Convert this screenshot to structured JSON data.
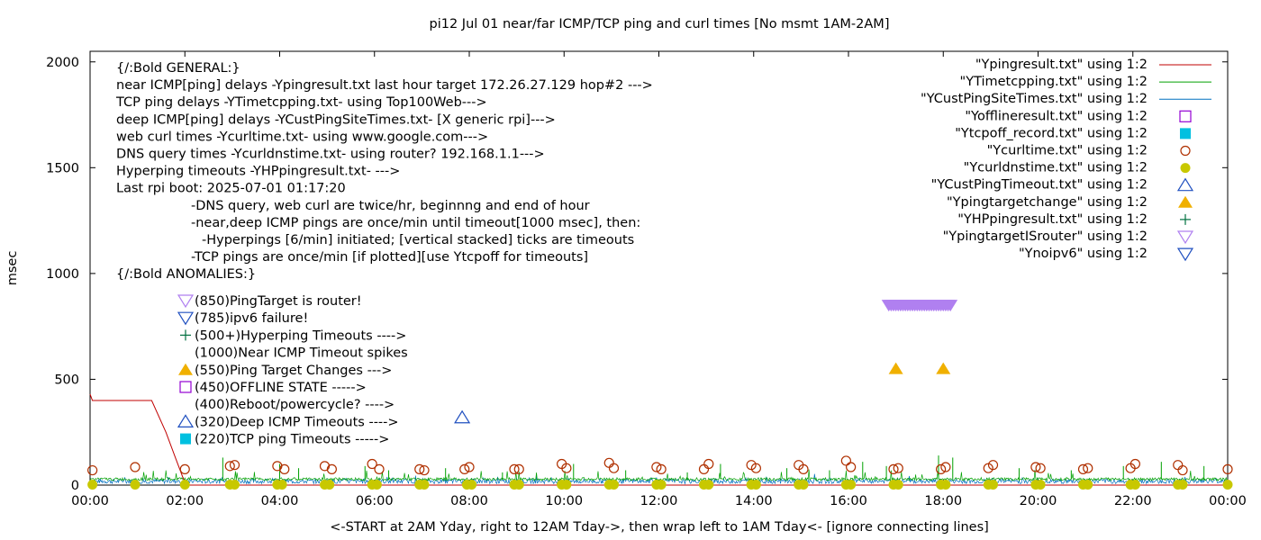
{
  "chart_data": {
    "type": "line",
    "title": "pi12 Jul 01  near/far ICMP/TCP ping and curl times [No msmt 1AM-2AM]",
    "xlabel": "<-START at 2AM Yday, right to 12AM Tday->, then wrap left to 1AM Tday<- [ignore connecting lines]",
    "ylabel": "msec",
    "x_unit": "hours",
    "xlim": [
      0,
      24
    ],
    "ylim": [
      0,
      2050
    ],
    "x_ticks": [
      {
        "v": 0,
        "label": "00:00"
      },
      {
        "v": 2,
        "label": "02:00"
      },
      {
        "v": 4,
        "label": "04:00"
      },
      {
        "v": 6,
        "label": "06:00"
      },
      {
        "v": 8,
        "label": "08:00"
      },
      {
        "v": 10,
        "label": "10:00"
      },
      {
        "v": 12,
        "label": "12:00"
      },
      {
        "v": 14,
        "label": "14:00"
      },
      {
        "v": 16,
        "label": "16:00"
      },
      {
        "v": 18,
        "label": "18:00"
      },
      {
        "v": 20,
        "label": "20:00"
      },
      {
        "v": 22,
        "label": "22:00"
      },
      {
        "v": 24,
        "label": "00:00"
      }
    ],
    "y_ticks": [
      {
        "v": 0,
        "label": "0"
      },
      {
        "v": 500,
        "label": "500"
      },
      {
        "v": 1000,
        "label": "1000"
      },
      {
        "v": 1500,
        "label": "1500"
      },
      {
        "v": 2000,
        "label": "2000"
      }
    ],
    "grid": false,
    "legend_position": "top-right",
    "annotations": [
      "{/:Bold GENERAL:}",
      "near ICMP[ping] delays -Ypingresult.txt last hour target 172.26.27.129 hop#2 --->",
      "TCP ping delays -YTimetcpping.txt- using Top100Web--->",
      "deep ICMP[ping] delays -YCustPingSiteTimes.txt- [X generic rpi]--->",
      "web curl times -Ycurltime.txt- using www.google.com--->",
      "DNS query times -Ycurldnstime.txt- using router? 192.168.1.1--->",
      "Hyperping timeouts -YHPpingresult.txt- --->",
      "Last rpi boot: 2025-07-01 01:17:20",
      "-DNS query, web curl are twice/hr, beginnng and end of hour",
      "-near,deep ICMP pings are once/min until timeout[1000 msec], then:",
      "-Hyperpings [6/min] initiated; [vertical stacked] ticks are timeouts",
      "-TCP pings are once/min [if plotted][use Ytcpoff for timeouts]",
      "{/:Bold ANOMALIES:}"
    ],
    "anomaly_keys": [
      {
        "symbol": "tri-down-violet",
        "label": "(850)PingTarget is router!"
      },
      {
        "symbol": "tri-down-blue",
        "label": "(785)ipv6 failure!"
      },
      {
        "symbol": "plus-green",
        "label": "(500+)Hyperping Timeouts ---->"
      },
      {
        "symbol": "none",
        "label": "(1000)Near ICMP Timeout spikes"
      },
      {
        "symbol": "tri-up-filled-orange",
        "label": "(550)Ping Target Changes --->"
      },
      {
        "symbol": "square-open-violet",
        "label": "(450)OFFLINE STATE ----->"
      },
      {
        "symbol": "none",
        "label": "(400)Reboot/powercycle? ---->"
      },
      {
        "symbol": "tri-up-blue",
        "label": "(320)Deep ICMP Timeouts ---->"
      },
      {
        "symbol": "square-filled-cyan",
        "label": "(220)TCP ping Timeouts ----->"
      }
    ],
    "series": [
      {
        "name": "\"Ypingresult.txt\" using 1:2",
        "style": "line",
        "color": "#c00000",
        "x": [
          0,
          0.05,
          0.1,
          1.0,
          1.3,
          1.6,
          1.8,
          2.0,
          2.05,
          24
        ],
        "y": [
          430,
          400,
          400,
          400,
          400,
          250,
          130,
          10,
          0,
          0
        ]
      },
      {
        "name": "\"YTimetcpping.txt\" using 1:2",
        "style": "line",
        "color": "#00a000",
        "x": [
          0,
          24
        ],
        "y": [
          28,
          28
        ]
      },
      {
        "name": "\"YCustPingSiteTimes.txt\" using 1:2",
        "style": "line",
        "color": "#0070c0",
        "x": [
          0,
          24
        ],
        "y": [
          18,
          18
        ]
      },
      {
        "name": "\"Yofflineresult.txt\" using 1:2",
        "style": "square-open",
        "color": "#9400d3",
        "x": [],
        "y": []
      },
      {
        "name": "\"Ytcpoff_record.txt\" using 1:2",
        "style": "square-filled",
        "color": "#00c0e0",
        "x": [],
        "y": []
      },
      {
        "name": "\"Ycurltime.txt\" using 1:2",
        "style": "circle-open",
        "color": "#b03000",
        "x": [
          0.05,
          0.95,
          2.0,
          2.95,
          3.05,
          3.95,
          4.1,
          4.95,
          5.1,
          5.95,
          6.1,
          6.95,
          7.05,
          7.9,
          8.0,
          8.95,
          9.05,
          9.95,
          10.05,
          10.95,
          11.05,
          11.95,
          12.05,
          12.95,
          13.05,
          13.95,
          14.05,
          14.95,
          15.05,
          15.95,
          16.05,
          16.95,
          17.05,
          17.95,
          18.05,
          18.95,
          19.05,
          19.95,
          20.05,
          20.95,
          21.05,
          21.95,
          22.05,
          22.95,
          23.05,
          24.0
        ],
        "y": [
          70,
          85,
          75,
          90,
          95,
          90,
          75,
          90,
          75,
          100,
          75,
          75,
          70,
          75,
          85,
          75,
          75,
          100,
          80,
          105,
          80,
          85,
          75,
          75,
          100,
          95,
          80,
          95,
          75,
          115,
          85,
          75,
          80,
          75,
          85,
          80,
          95,
          85,
          80,
          75,
          80,
          80,
          100,
          95,
          70,
          75
        ]
      },
      {
        "name": "\"Ycurldnstime.txt\" using 1:2",
        "style": "circle-filled",
        "color": "#c8c800",
        "x": [
          0.05,
          0.95,
          2.0,
          2.95,
          3.05,
          3.95,
          4.05,
          4.95,
          5.05,
          5.95,
          6.05,
          6.95,
          7.05,
          7.95,
          8.05,
          8.95,
          9.05,
          9.95,
          10.05,
          10.95,
          11.05,
          11.95,
          12.05,
          12.95,
          13.05,
          13.95,
          14.05,
          14.95,
          15.05,
          15.95,
          16.05,
          16.95,
          17.05,
          17.95,
          18.05,
          18.95,
          19.05,
          19.95,
          20.05,
          20.95,
          21.05,
          21.95,
          22.05,
          22.95,
          23.05,
          24.0
        ],
        "y": [
          2,
          2,
          2,
          2,
          2,
          2,
          2,
          2,
          2,
          2,
          2,
          2,
          2,
          2,
          2,
          2,
          2,
          2,
          2,
          2,
          2,
          2,
          2,
          2,
          2,
          2,
          2,
          2,
          2,
          2,
          2,
          2,
          2,
          2,
          2,
          2,
          2,
          2,
          2,
          2,
          2,
          2,
          2,
          2,
          2,
          2
        ]
      },
      {
        "name": "\"YCustPingTimeout.txt\" using 1:2",
        "style": "tri-up-open",
        "color": "#2050c0",
        "x": [
          7.85
        ],
        "y": [
          320
        ]
      },
      {
        "name": "\"Ypingtargetchange\" using 1:2",
        "style": "tri-up-filled",
        "color": "#f0b000",
        "x": [
          17.0,
          18.0
        ],
        "y": [
          550,
          550
        ]
      },
      {
        "name": "\"YHPpingresult.txt\" using 1:2",
        "style": "plus",
        "color": "#007040",
        "x": [],
        "y": []
      },
      {
        "name": "\"YpingtargetISrouter\" using 1:2",
        "style": "tri-down-open",
        "color": "#b080f0",
        "x": [
          16.85,
          16.9,
          16.95,
          17.0,
          17.05,
          17.1,
          17.15,
          17.2,
          17.25,
          17.3,
          17.35,
          17.4,
          17.45,
          17.5,
          17.55,
          17.6,
          17.65,
          17.7,
          17.75,
          17.8,
          17.85,
          17.9,
          17.95,
          18.0,
          18.05,
          18.1,
          18.15
        ],
        "y": [
          850,
          850,
          850,
          850,
          850,
          850,
          850,
          850,
          850,
          850,
          850,
          850,
          850,
          850,
          850,
          850,
          850,
          850,
          850,
          850,
          850,
          850,
          850,
          850,
          850,
          850,
          850
        ]
      },
      {
        "name": "\"Ynoipv6\" using 1:2",
        "style": "tri-down-open",
        "color": "#2050c0",
        "x": [],
        "y": []
      }
    ],
    "tcp_spikes": {
      "x": [
        2.8,
        4.0,
        4.4,
        5.8,
        6.3,
        7.5,
        8.7,
        10.2,
        11.3,
        12.6,
        13.3,
        14.7,
        15.6,
        16.3,
        16.8,
        17.9,
        18.2,
        19.6,
        20.7,
        21.8,
        22.6,
        23.5
      ],
      "y": [
        130,
        100,
        80,
        90,
        70,
        80,
        60,
        100,
        70,
        60,
        100,
        80,
        70,
        110,
        90,
        140,
        130,
        80,
        70,
        90,
        110,
        90
      ]
    },
    "background_noise": {
      "tcp_base": 28,
      "deep_base": 18
    }
  }
}
